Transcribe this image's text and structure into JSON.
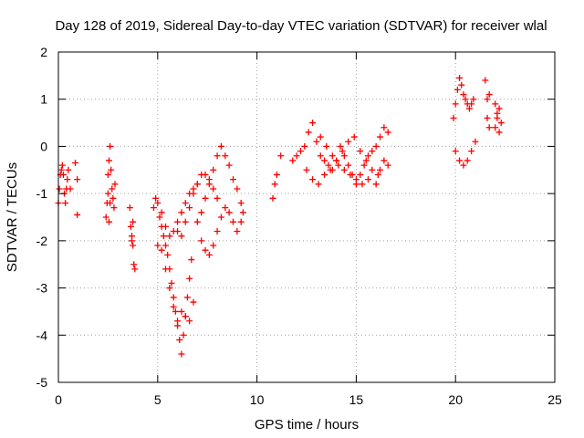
{
  "chart_data": {
    "type": "scatter",
    "title": "Day 128 of 2019, Sidereal Day-to-day VTEC variation (SDTVAR) for receiver wlal",
    "xlabel": "GPS time / hours",
    "ylabel": "SDTVAR / TECUs",
    "xlim": [
      0,
      25
    ],
    "ylim": [
      -5,
      2
    ],
    "xticks": [
      0,
      5,
      10,
      15,
      20,
      25
    ],
    "yticks": [
      -5,
      -4,
      -3,
      -2,
      -1,
      0,
      1,
      2
    ],
    "xtick_labels": [
      "0",
      "5",
      "10",
      "15",
      "20",
      "25"
    ],
    "ytick_labels": [
      "-5",
      "-4",
      "-3",
      "-2",
      "-1",
      "0",
      "1",
      "2"
    ],
    "grid": true,
    "marker": "+",
    "color": "#ff0000",
    "series": [
      {
        "name": "SDTVAR",
        "x": [
          0.0,
          0.05,
          0.1,
          0.15,
          0.2,
          0.25,
          0.3,
          0.35,
          0.4,
          0.45,
          0.5,
          0.6,
          0.85,
          0.95,
          0.95,
          2.4,
          2.45,
          2.5,
          2.55,
          2.6,
          2.65,
          2.7,
          2.75,
          2.8,
          2.85,
          2.5,
          2.55,
          2.6,
          3.6,
          3.65,
          3.7,
          3.75,
          3.8,
          3.85,
          3.7,
          3.75,
          4.8,
          4.9,
          5.0,
          5.1,
          5.2,
          5.3,
          5.4,
          5.5,
          5.6,
          5.7,
          5.8,
          5.9,
          6.0,
          6.1,
          6.2,
          6.3,
          6.4,
          6.5,
          6.6,
          6.7,
          5.0,
          5.2,
          5.4,
          5.6,
          5.8,
          6.0,
          6.2,
          6.4,
          6.6,
          6.8,
          5.2,
          5.4,
          5.6,
          5.8,
          6.0,
          6.2,
          6.4,
          6.6,
          6.8,
          7.0,
          6.0,
          6.2,
          6.4,
          6.6,
          6.8,
          7.0,
          7.2,
          7.4,
          7.6,
          7.8,
          8.0,
          7.0,
          7.2,
          7.4,
          7.6,
          7.8,
          8.0,
          8.2,
          8.4,
          7.2,
          7.4,
          7.6,
          7.8,
          8.0,
          8.2,
          8.4,
          8.6,
          8.8,
          9.0,
          9.2,
          8.6,
          8.8,
          9.0,
          9.2,
          9.3,
          10.8,
          10.9,
          11.0,
          11.2,
          11.8,
          12.0,
          12.2,
          12.4,
          12.6,
          12.8,
          13.0,
          13.2,
          13.4,
          13.6,
          13.8,
          14.0,
          14.2,
          14.4,
          14.6,
          14.8,
          15.0,
          15.2,
          15.4,
          15.6,
          15.8,
          16.0,
          16.2,
          16.4,
          16.6,
          12.5,
          12.8,
          13.1,
          13.4,
          13.7,
          14.0,
          14.3,
          14.6,
          14.9,
          15.2,
          15.5,
          15.8,
          16.1,
          13.2,
          13.5,
          13.8,
          14.1,
          14.4,
          14.7,
          15.0,
          15.3,
          15.6,
          16.0,
          16.2,
          16.4,
          16.6,
          19.9,
          20.0,
          20.1,
          20.2,
          20.3,
          20.4,
          20.5,
          20.6,
          20.7,
          20.8,
          20.9,
          20.0,
          20.2,
          20.4,
          20.6,
          20.8,
          21.0,
          21.5,
          21.6,
          21.7,
          21.6,
          21.7,
          22.0,
          22.1,
          22.2,
          22.3,
          22.0,
          22.1,
          22.2
        ],
        "y": [
          -1.2,
          -0.9,
          -0.6,
          -0.5,
          -0.4,
          -0.6,
          -1.0,
          -1.2,
          -0.9,
          -0.7,
          -0.5,
          -0.9,
          -0.35,
          -0.7,
          -1.45,
          -1.5,
          -1.2,
          -0.6,
          -0.3,
          0.0,
          -0.5,
          -0.9,
          -1.1,
          -1.3,
          -0.8,
          -1.0,
          -1.6,
          -1.2,
          -1.3,
          -1.7,
          -2.0,
          -1.6,
          -2.5,
          -2.6,
          -1.9,
          -2.1,
          -1.3,
          -1.1,
          -1.2,
          -1.5,
          -1.7,
          -1.9,
          -2.1,
          -2.3,
          -2.6,
          -2.9,
          -3.2,
          -3.5,
          -3.8,
          -4.1,
          -4.4,
          -4.0,
          -3.6,
          -3.2,
          -2.8,
          -2.4,
          -2.1,
          -2.2,
          -2.6,
          -3.0,
          -3.4,
          -3.7,
          -3.5,
          -3.6,
          -3.7,
          -3.3,
          -1.4,
          -1.7,
          -1.9,
          -1.8,
          -1.6,
          -1.4,
          -1.2,
          -1.0,
          -0.9,
          -0.8,
          -1.8,
          -1.9,
          -1.6,
          -1.3,
          -1.0,
          -0.8,
          -0.6,
          -0.6,
          -0.7,
          -0.9,
          -1.1,
          -1.6,
          -1.4,
          -1.1,
          -0.8,
          -0.5,
          -0.2,
          0.0,
          -0.2,
          -2.0,
          -2.2,
          -2.3,
          -2.1,
          -1.8,
          -1.5,
          -1.3,
          -1.4,
          -1.6,
          -1.8,
          -1.6,
          -0.4,
          -0.7,
          -0.9,
          -1.2,
          -1.4,
          -1.1,
          -0.8,
          -0.6,
          -0.2,
          -0.3,
          -0.2,
          -0.1,
          0.0,
          0.3,
          0.5,
          0.1,
          -0.2,
          -0.3,
          -0.4,
          -0.5,
          -0.3,
          0.0,
          -0.2,
          -0.4,
          -0.6,
          -0.8,
          -0.6,
          -0.4,
          -0.2,
          -0.1,
          0.0,
          0.2,
          0.4,
          0.3,
          -0.5,
          -0.7,
          -0.8,
          -0.6,
          -0.5,
          -0.3,
          -0.1,
          0.1,
          0.2,
          -0.1,
          -0.3,
          -0.5,
          -0.6,
          0.2,
          0.0,
          -0.2,
          -0.4,
          -0.5,
          -0.6,
          -0.7,
          -0.8,
          -0.7,
          -0.8,
          -0.5,
          -0.3,
          -0.4,
          0.6,
          0.9,
          1.2,
          1.45,
          1.3,
          1.1,
          1.0,
          0.9,
          0.8,
          0.9,
          1.0,
          -0.1,
          -0.3,
          -0.4,
          -0.3,
          -0.1,
          0.1,
          1.4,
          0.6,
          0.4,
          1.0,
          1.1,
          0.4,
          0.6,
          0.8,
          0.5,
          0.9,
          0.7,
          0.3
        ]
      }
    ]
  }
}
